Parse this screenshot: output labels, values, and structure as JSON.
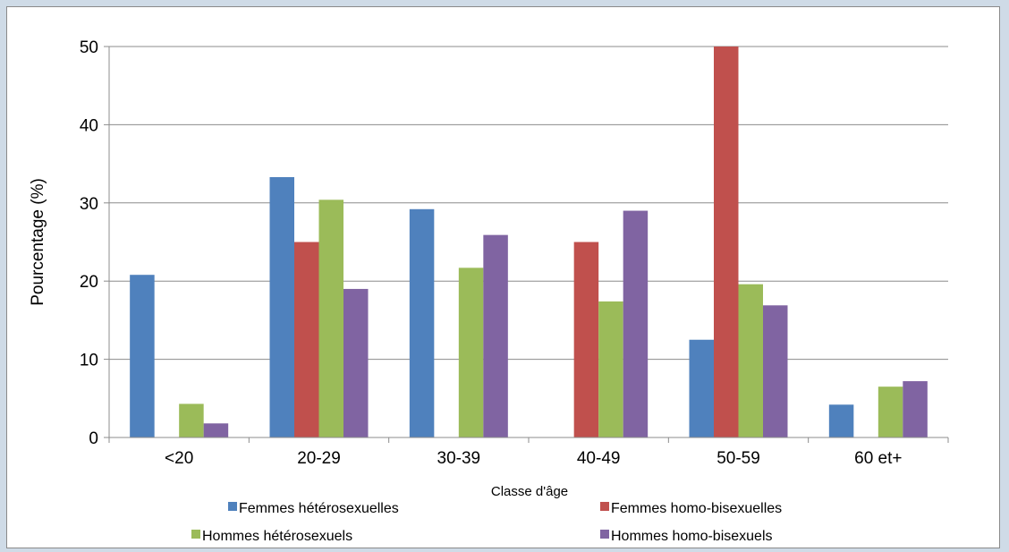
{
  "chart_data": {
    "type": "bar",
    "categories": [
      "<20",
      "20-29",
      "30-39",
      "40-49",
      "50-59",
      "60 et+"
    ],
    "series": [
      {
        "name": "Femmes hétérosexuelles",
        "color": "#4f81bd",
        "values": [
          20.8,
          33.3,
          29.2,
          0,
          12.5,
          4.2
        ]
      },
      {
        "name": "Femmes homo-bisexuelles",
        "color": "#c0504d",
        "values": [
          0,
          25,
          0,
          25,
          50,
          0
        ]
      },
      {
        "name": "Hommes hétérosexuels",
        "color": "#9bbb59",
        "values": [
          4.3,
          30.4,
          21.7,
          17.4,
          19.6,
          6.5
        ]
      },
      {
        "name": "Hommes homo-bisexuels",
        "color": "#8064a2",
        "values": [
          1.8,
          19,
          25.9,
          29,
          16.9,
          7.2
        ]
      }
    ],
    "xlabel": "Classe d'âge",
    "ylabel": "Pourcentage (%)",
    "ylim": [
      0,
      50
    ],
    "yticks": [
      "0",
      "10",
      "20",
      "30",
      "40",
      "50"
    ],
    "grid": true,
    "legend_position": "bottom"
  }
}
